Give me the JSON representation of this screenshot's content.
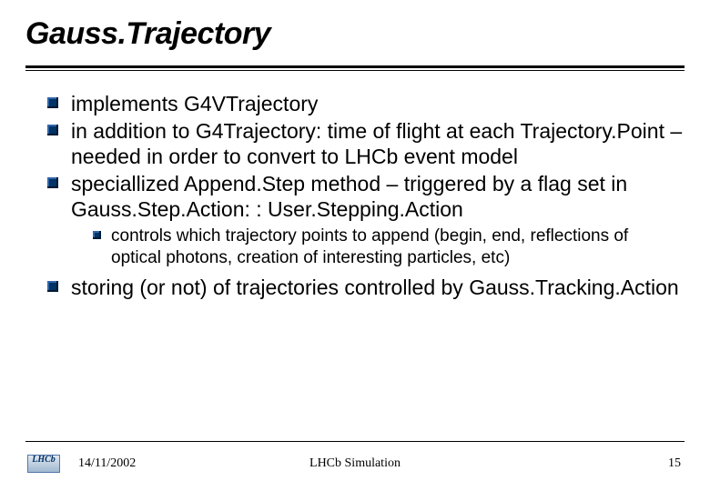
{
  "title": "Gauss.Trajectory",
  "bullets": {
    "b1": "implements G4VTrajectory",
    "b2": "in addition to G4Trajectory: time of flight at each Trajectory.Point – needed in order to convert to LHCb event model",
    "b3": "speciallized Append.Step method – triggered by  a flag set in  Gauss.Step.Action: : User.Stepping.Action",
    "b3_sub1": "controls which trajectory points to append (begin, end, reflections of optical photons, creation of interesting particles, etc)",
    "b4": "storing (or not) of trajectories controlled by Gauss.Tracking.Action"
  },
  "footer": {
    "logo": "LHCb",
    "date": "14/11/2002",
    "center": "LHCb Simulation",
    "page": "15"
  },
  "colors": {
    "text": "#000000",
    "bullet": "#003366",
    "background": "#ffffff"
  }
}
